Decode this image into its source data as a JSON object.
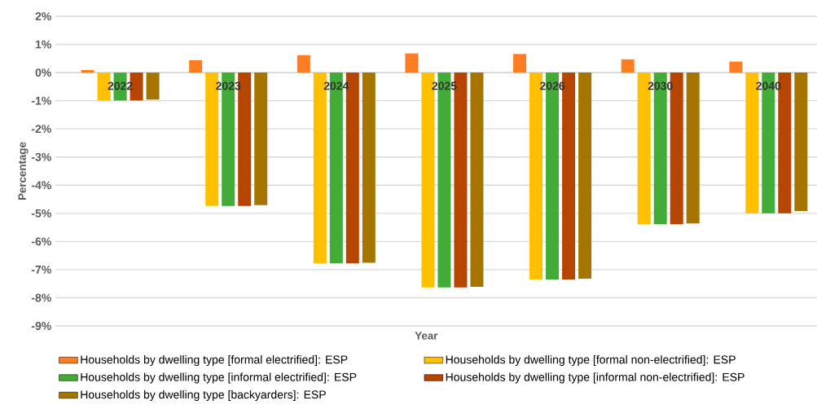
{
  "chart_data": {
    "type": "bar",
    "xlabel": "Year",
    "ylabel": "Percentage",
    "categories": [
      "2022",
      "2023",
      "2024",
      "2025",
      "2026",
      "2030",
      "2040"
    ],
    "series": [
      {
        "name": "Households by dwelling type [formal electrified]: ESP",
        "color": "#fd7e22",
        "values": [
          0.09,
          0.44,
          0.62,
          0.68,
          0.66,
          0.47,
          0.39
        ]
      },
      {
        "name": "Households by dwelling type [formal non-electrified]: ESP",
        "color": "#ffc000",
        "values": [
          -0.99,
          -4.74,
          -6.78,
          -7.63,
          -7.35,
          -5.39,
          -5.0
        ]
      },
      {
        "name": "Households by dwelling type [informal electrified]: ESP",
        "color": "#43ab38",
        "values": [
          -0.99,
          -4.74,
          -6.78,
          -7.63,
          -7.35,
          -5.39,
          -5.0
        ]
      },
      {
        "name": "Households by dwelling type [informal non-electrified]: ESP",
        "color": "#b54500",
        "values": [
          -0.99,
          -4.74,
          -6.78,
          -7.63,
          -7.35,
          -5.39,
          -5.0
        ]
      },
      {
        "name": "Households by dwelling type [backyarders]: ESP",
        "color": "#a57500",
        "values": [
          -0.96,
          -4.71,
          -6.76,
          -7.61,
          -7.32,
          -5.36,
          -4.92
        ]
      }
    ],
    "ylim": [
      -9,
      2
    ],
    "yticks": [
      {
        "value": -9,
        "label": "-9%"
      },
      {
        "value": -8,
        "label": "-8%"
      },
      {
        "value": -7,
        "label": "-7%"
      },
      {
        "value": -6,
        "label": "-6%"
      },
      {
        "value": -5,
        "label": "-5%"
      },
      {
        "value": -4,
        "label": "-4%"
      },
      {
        "value": -3,
        "label": "-3%"
      },
      {
        "value": -2,
        "label": "-2%"
      },
      {
        "value": -1,
        "label": "-1%"
      },
      {
        "value": 0,
        "label": "0%"
      },
      {
        "value": 1,
        "label": "1%"
      },
      {
        "value": 2,
        "label": "2%"
      }
    ],
    "grid": "y",
    "legend": "bottom"
  }
}
